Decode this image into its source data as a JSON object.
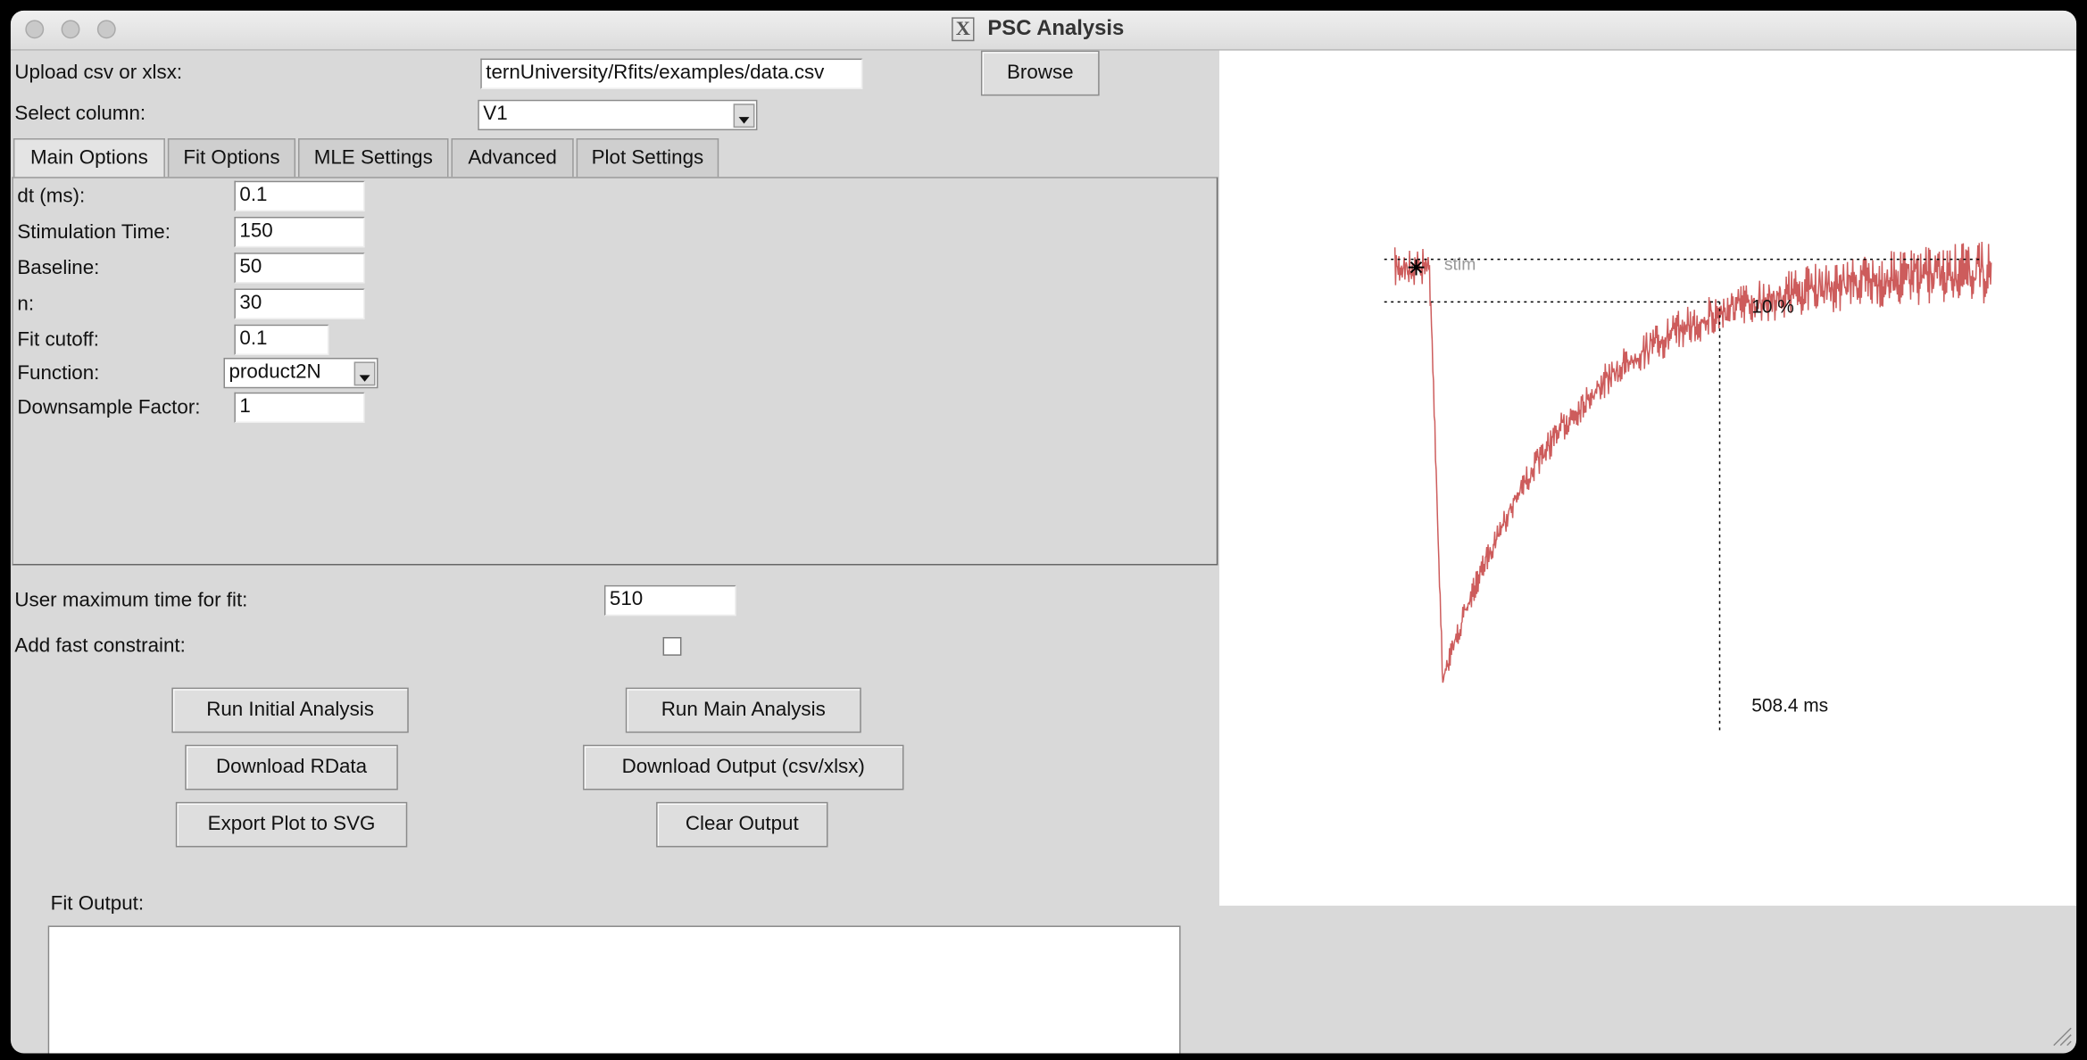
{
  "window": {
    "title": "PSC Analysis"
  },
  "file": {
    "label": "Upload csv or xlsx:",
    "path": "ternUniversity/Rfits/examples/data.csv",
    "browse": "Browse"
  },
  "column": {
    "label": "Select column:",
    "value": "V1"
  },
  "tabs": [
    "Main Options",
    "Fit Options",
    "MLE Settings",
    "Advanced",
    "Plot Settings"
  ],
  "main_options": {
    "fields": [
      {
        "label": "dt (ms):",
        "value": "0.1"
      },
      {
        "label": "Stimulation Time:",
        "value": "150"
      },
      {
        "label": "Baseline:",
        "value": "50"
      },
      {
        "label": "n:",
        "value": "30"
      },
      {
        "label": "Fit cutoff:",
        "value": "0.1"
      },
      {
        "label": "Function:",
        "value": "product2N"
      },
      {
        "label": "Downsample Factor:",
        "value": "1"
      }
    ]
  },
  "fit_settings": {
    "max_time_label": "User maximum time for fit:",
    "max_time": "510",
    "fast_constraint_label": "Add fast constraint:"
  },
  "buttons": [
    "Run Initial Analysis",
    "Run Main Analysis",
    "Download RData",
    "Download Output (csv/xlsx)",
    "Export Plot to SVG",
    "Clear Output"
  ],
  "output": {
    "label": "Fit Output:"
  },
  "plot": {
    "annotations": [
      "stim",
      "10 %",
      "508.4 ms"
    ]
  }
}
